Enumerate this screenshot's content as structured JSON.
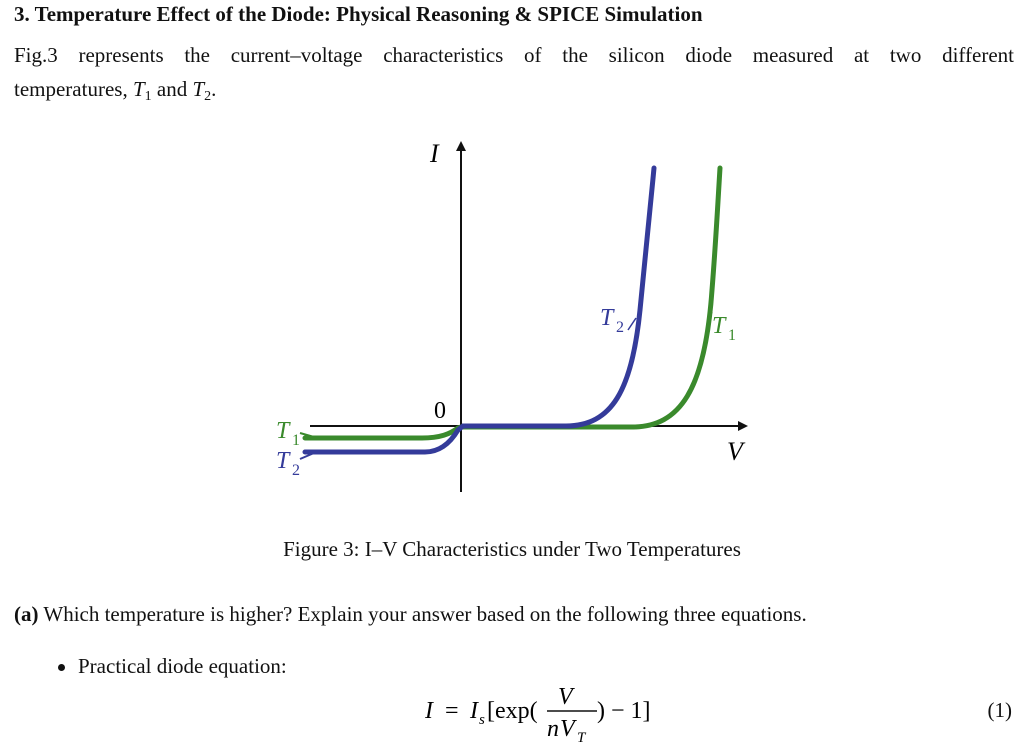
{
  "section": {
    "heading": "3. Temperature Effect of the Diode: Physical Reasoning & SPICE Simulation",
    "intro_line1": "Fig.3 represents the current–voltage characteristics of the silicon diode measured at two different",
    "intro_line2_prefix": "temperatures, ",
    "intro_and": " and ",
    "intro_end": "."
  },
  "symbols": {
    "T": "T",
    "sub1": "1",
    "sub2": "2"
  },
  "figure": {
    "y_axis_label": "I",
    "x_axis_label": "V",
    "origin_label": "0",
    "curve_T1_label": "T",
    "curve_T1_sub": "1",
    "curve_T2_label": "T",
    "curve_T2_sub": "2",
    "colors": {
      "T1": "#3a8a2c",
      "T2": "#343b9a",
      "axis": "#111111"
    },
    "caption": "Figure 3: I–V Characteristics under Two Temperatures"
  },
  "question": {
    "part": "(a)",
    "text": " Which temperature is higher? Explain your answer based on the following three equations."
  },
  "bullet": {
    "text": "Practical diode equation:"
  },
  "equation": {
    "lhs": "I",
    "eq": " = ",
    "Is": "I",
    "Is_sub": "s",
    "open": "[exp(",
    "num": "V",
    "den_n": "n",
    "den_V": "V",
    "den_sub": "T",
    "close": ") − 1]",
    "number": "(1)"
  }
}
